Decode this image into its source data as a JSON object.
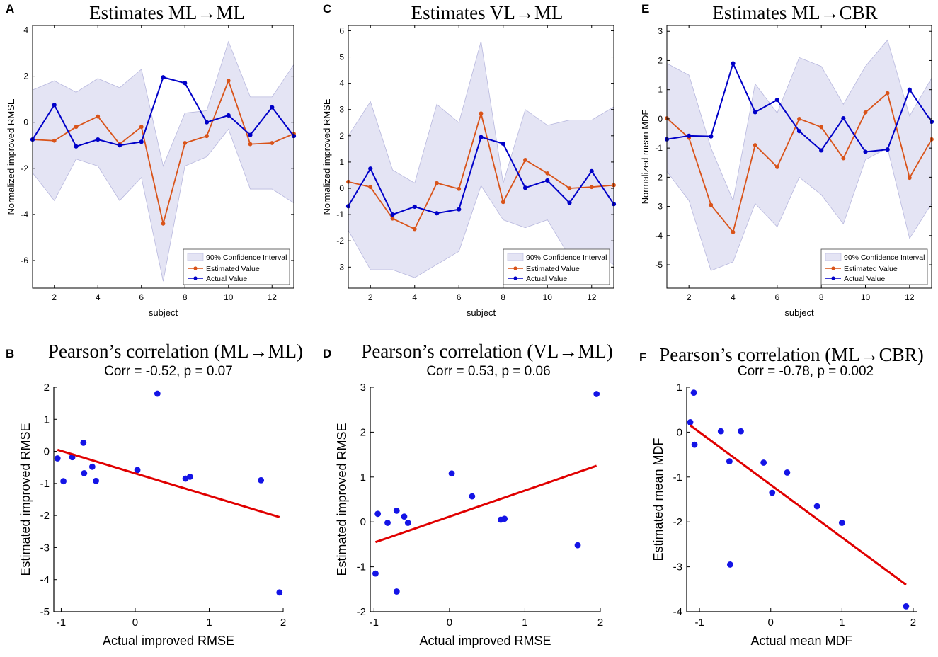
{
  "colors": {
    "estimated": "#d95319",
    "actual": "#0000c8",
    "ci_fill": "#e4e4f4",
    "ci_edge": "#b8b8de",
    "fit": "#e00000",
    "points": "#1414e6"
  },
  "chart_data": [
    {
      "panel": "A",
      "type": "line",
      "title": "Estimates ML→ML",
      "xlabel": "subject",
      "ylabel": "Normalized improved RMSE",
      "xlim": [
        1,
        13
      ],
      "ylim": [
        -7.2,
        4.2
      ],
      "xticks": [
        2,
        4,
        6,
        8,
        10,
        12
      ],
      "yticks": [
        -6,
        -4,
        -2,
        0,
        2,
        4
      ],
      "x": [
        1,
        2,
        3,
        4,
        5,
        6,
        7,
        8,
        9,
        10,
        11,
        12,
        13
      ],
      "series": [
        {
          "name": "Estimated Value",
          "values": [
            -0.75,
            -0.8,
            -0.2,
            0.25,
            -0.95,
            -0.2,
            -4.4,
            -0.9,
            -0.6,
            1.8,
            -0.95,
            -0.9,
            -0.5
          ]
        },
        {
          "name": "Actual Value",
          "values": [
            -0.75,
            0.75,
            -1.05,
            -0.75,
            -1.0,
            -0.85,
            1.95,
            1.7,
            0.0,
            0.3,
            -0.55,
            0.65,
            -0.6
          ]
        }
      ],
      "ci_label": "90% Confidence Interval",
      "ci_upper": [
        1.4,
        1.8,
        1.3,
        1.9,
        1.5,
        2.3,
        -1.9,
        0.4,
        0.5,
        3.5,
        1.1,
        1.1,
        2.5
      ],
      "ci_lower": [
        -2.2,
        -3.4,
        -1.6,
        -1.9,
        -3.4,
        -2.4,
        -6.9,
        -1.9,
        -1.5,
        -0.3,
        -2.9,
        -2.9,
        -3.5
      ]
    },
    {
      "panel": "C",
      "type": "line",
      "title": "Estimates VL→ML",
      "xlabel": "subject",
      "ylabel": "Normalized improved RMSE",
      "xlim": [
        1,
        13
      ],
      "ylim": [
        -3.8,
        6.2
      ],
      "xticks": [
        2,
        4,
        6,
        8,
        10,
        12
      ],
      "yticks": [
        -3,
        -2,
        -1,
        0,
        1,
        2,
        3,
        4,
        5,
        6
      ],
      "x": [
        1,
        2,
        3,
        4,
        5,
        6,
        7,
        8,
        9,
        10,
        11,
        12,
        13
      ],
      "series": [
        {
          "name": "Estimated Value",
          "values": [
            0.25,
            0.05,
            -1.15,
            -1.55,
            0.2,
            -0.02,
            2.85,
            -0.52,
            1.08,
            0.57,
            0.0,
            0.05,
            0.12
          ]
        },
        {
          "name": "Actual Value",
          "values": [
            -0.68,
            0.75,
            -1.0,
            -0.7,
            -0.95,
            -0.8,
            1.95,
            1.7,
            0.02,
            0.3,
            -0.55,
            0.65,
            -0.6
          ]
        }
      ],
      "ci_label": "90% Confidence Interval",
      "ci_upper": [
        2.0,
        3.3,
        0.7,
        0.2,
        3.2,
        2.5,
        5.6,
        0.2,
        3.0,
        2.4,
        2.6,
        2.6,
        3.1
      ],
      "ci_lower": [
        -1.6,
        -3.1,
        -3.1,
        -3.4,
        -2.9,
        -2.4,
        0.1,
        -1.2,
        -1.5,
        -1.2,
        -2.6,
        -2.5,
        -2.9
      ]
    },
    {
      "panel": "E",
      "type": "line",
      "title": "Estimates ML→CBR",
      "xlabel": "subject",
      "ylabel": "Normalized mean MDF",
      "xlim": [
        1,
        13
      ],
      "ylim": [
        -5.8,
        3.2
      ],
      "xticks": [
        2,
        4,
        6,
        8,
        10,
        12
      ],
      "yticks": [
        -5,
        -4,
        -3,
        -2,
        -1,
        0,
        1,
        2,
        3
      ],
      "x": [
        1,
        2,
        3,
        4,
        5,
        6,
        7,
        8,
        9,
        10,
        11,
        12,
        13
      ],
      "series": [
        {
          "name": "Estimated Value",
          "values": [
            0.02,
            -0.65,
            -2.95,
            -3.88,
            -0.9,
            -1.65,
            0.0,
            -0.28,
            -1.35,
            0.22,
            0.88,
            -2.02,
            -0.7
          ]
        },
        {
          "name": "Actual Value",
          "values": [
            -0.7,
            -0.58,
            -0.6,
            1.9,
            0.23,
            0.65,
            -0.42,
            -1.08,
            0.02,
            -1.13,
            -1.05,
            1.0,
            -0.1
          ]
        }
      ],
      "ci_label": "90% Confidence Interval",
      "ci_upper": [
        1.9,
        1.5,
        -1.0,
        -2.8,
        1.2,
        0.2,
        2.1,
        1.8,
        0.5,
        1.8,
        2.7,
        0.1,
        1.4
      ],
      "ci_lower": [
        -1.8,
        -2.8,
        -5.2,
        -4.9,
        -2.9,
        -3.7,
        -2.0,
        -2.6,
        -3.6,
        -1.4,
        -1.0,
        -4.1,
        -2.9
      ]
    },
    {
      "panel": "B",
      "type": "scatter",
      "title": "Pearson’s correlation (ML→ML)",
      "subtitle": "Corr = -0.52, p = 0.07",
      "xlabel": "Actual improved RMSE",
      "ylabel": "Estimated improved RMSE",
      "xlim": [
        -1.1,
        2.0
      ],
      "ylim": [
        -5,
        2
      ],
      "xticks": [
        -1,
        0,
        1,
        2
      ],
      "yticks": [
        -5,
        -4,
        -3,
        -2,
        -1,
        0,
        1,
        2
      ],
      "x": [
        -1.05,
        -0.97,
        -0.85,
        -0.7,
        -0.69,
        -0.58,
        -0.53,
        0.03,
        0.3,
        0.68,
        0.74,
        1.7,
        1.95
      ],
      "y": [
        -0.22,
        -0.93,
        -0.18,
        0.27,
        -0.68,
        -0.48,
        -0.92,
        -0.58,
        1.8,
        -0.85,
        -0.79,
        -0.9,
        -4.4
      ],
      "fit": {
        "x": [
          -1.05,
          1.95
        ],
        "y": [
          0.05,
          -2.05
        ]
      }
    },
    {
      "panel": "D",
      "type": "scatter",
      "title": "Pearson’s correlation (VL→ML)",
      "subtitle": "Corr = 0.53, p = 0.06",
      "xlabel": "Actual improved RMSE",
      "ylabel": "Estimated improved RMSE",
      "xlim": [
        -1.05,
        2.0
      ],
      "ylim": [
        -2,
        3
      ],
      "xticks": [
        -1,
        0,
        1,
        2
      ],
      "yticks": [
        -2,
        -1,
        0,
        1,
        2,
        3
      ],
      "x": [
        -0.98,
        -0.95,
        -0.82,
        -0.7,
        -0.7,
        -0.6,
        -0.55,
        0.03,
        0.3,
        0.68,
        0.73,
        1.7,
        1.95
      ],
      "y": [
        -1.15,
        0.18,
        -0.02,
        -1.55,
        0.25,
        0.12,
        -0.02,
        1.08,
        0.57,
        0.05,
        0.07,
        -0.52,
        2.85
      ],
      "fit": {
        "x": [
          -0.98,
          1.95
        ],
        "y": [
          -0.45,
          1.25
        ]
      }
    },
    {
      "panel": "F",
      "type": "scatter",
      "title": "Pearson’s correlation (ML→CBR)",
      "subtitle": "Corr = -0.78, p = 0.002",
      "xlabel": "Actual mean MDF",
      "ylabel": "Estimated mean MDF",
      "xlim": [
        -1.18,
        2.05
      ],
      "ylim": [
        -4,
        1
      ],
      "xticks": [
        -1,
        0,
        1,
        2
      ],
      "yticks": [
        -4,
        -3,
        -2,
        -1,
        0,
        1
      ],
      "x": [
        -1.13,
        -1.08,
        -1.07,
        -0.7,
        -0.58,
        -0.57,
        -0.42,
        -0.1,
        0.02,
        0.23,
        0.65,
        1.0,
        1.9
      ],
      "y": [
        0.22,
        0.88,
        -0.28,
        0.02,
        -0.65,
        -2.95,
        0.02,
        -0.68,
        -1.35,
        -0.9,
        -1.65,
        -2.02,
        -3.88
      ],
      "fit": {
        "x": [
          -1.13,
          1.9
        ],
        "y": [
          0.15,
          -3.4
        ]
      }
    }
  ],
  "panel_labels": [
    "A",
    "C",
    "E",
    "B",
    "D",
    "F"
  ]
}
